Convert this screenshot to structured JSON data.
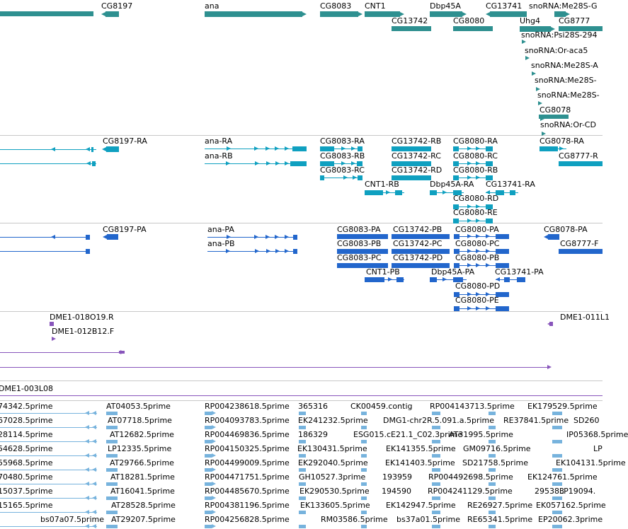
{
  "colors": {
    "gene": "#2e9090",
    "transcript": "#0fa0c0",
    "protein": "#2266cc",
    "clone": "#8855bb",
    "est": "#77b3dd",
    "divider": "#c8c8c8"
  },
  "tracks": {
    "genes": {
      "labels": [
        "CG8197",
        "ana",
        "CG8083",
        "CNT1",
        "Dbp45A",
        "CG13741",
        "snoRNA:Me28S-G",
        "CG13742",
        "CG8080",
        "Uhg4",
        "CG8777",
        "snoRNA:Psi28S-294",
        "snoRNA:Or-aca5",
        "snoRNA:Me28S-A",
        "snoRNA:Me28S-",
        "snoRNA:Me28S-",
        "CG8078",
        "snoRNA:Or-CD"
      ]
    },
    "transcripts": {
      "labels": [
        "CG8197-RA",
        "ana-RA",
        "ana-RB",
        "CG8083-RA",
        "CG8083-RB",
        "CG8083-RC",
        "CG13742-RB",
        "CG13742-RC",
        "CG13742-RD",
        "CG8080-RA",
        "CG8080-RC",
        "CG8080-RB",
        "CG8078-RA",
        "CG8777-R",
        "CNT1-RB",
        "Dbp45A-RA",
        "CG13741-RA",
        "CG8080-RD",
        "CG8080-RE"
      ]
    },
    "proteins": {
      "labels": [
        "CG8197-PA",
        "ana-PA",
        "ana-PB",
        "CG8083-PA",
        "CG8083-PB",
        "CG8083-PC",
        "CG13742-PB",
        "CG13742-PC",
        "CG13742-PD",
        "CG8080-PA",
        "CG8080-PC",
        "CG8080-PB",
        "CG8078-PA",
        "CG8777-F",
        "CNT1-PB",
        "Dbp45A-PA",
        "CG13741-PA",
        "CG8080-PD",
        "CG8080-PE"
      ]
    },
    "clones": {
      "labels": [
        "DME1-018O19.R",
        "DME1-012B12.F",
        "DME1-011L1",
        "DME1-003L08"
      ]
    },
    "ests": {
      "rows": [
        [
          "74342.5prime",
          "AT04053.5prime",
          "RP004238618.5prime",
          "365316",
          "CK00459.contig",
          "RP004143713.5prime",
          "EK179529.5prime"
        ],
        [
          "67028.5prime",
          "AT07718.5prime",
          "RP004093783.5prime",
          "EK241232.5prime",
          "DMG1-chr2R.5.091.a.5prime",
          "RE37841.5prime",
          "SD260"
        ],
        [
          "28114.5prime",
          "AT12682.5prime",
          "RP004469836.5prime",
          "186329",
          "ESG015.cE21.1_C02.3prime",
          "AT31995.5prime",
          "IP05368.5prime"
        ],
        [
          "54628.5prime",
          "LP12335.5prime",
          "RP004150325.5prime",
          "EK130431.5prime",
          "EK141355.5prime",
          "GM09716.5prime",
          "LP"
        ],
        [
          "55968.5prime",
          "AT29766.5prime",
          "RP004499009.5prime",
          "EK292040.5prime",
          "EK141403.5prime",
          "SD21758.5prime",
          "EK104131.5prime"
        ],
        [
          "70480.5prime",
          "AT18281.5prime",
          "RP004471751.5prime",
          "GH10527.3prime",
          "193959",
          "RP004492698.5prime",
          "EK124761.5prime"
        ],
        [
          "15037.5prime",
          "AT16041.5prime",
          "RP004485670.5prime",
          "EK290530.5prime",
          "194590",
          "RP004241129.5prime",
          "295383",
          "LP19094."
        ],
        [
          "15165.5prime",
          "AT28528.5prime",
          "RP004381196.5prime",
          "EK133605.5prime",
          "EK142947.5prime",
          "RE26927.5prime",
          "EK057162.5prime"
        ],
        [
          "bs07a07.5prime",
          "AT29207.5prime",
          "RP004256828.5prime",
          "RM03586.5prime",
          "bs37a01.5prime",
          "RE65341.5prime",
          "EP20062.3prime"
        ]
      ]
    }
  }
}
